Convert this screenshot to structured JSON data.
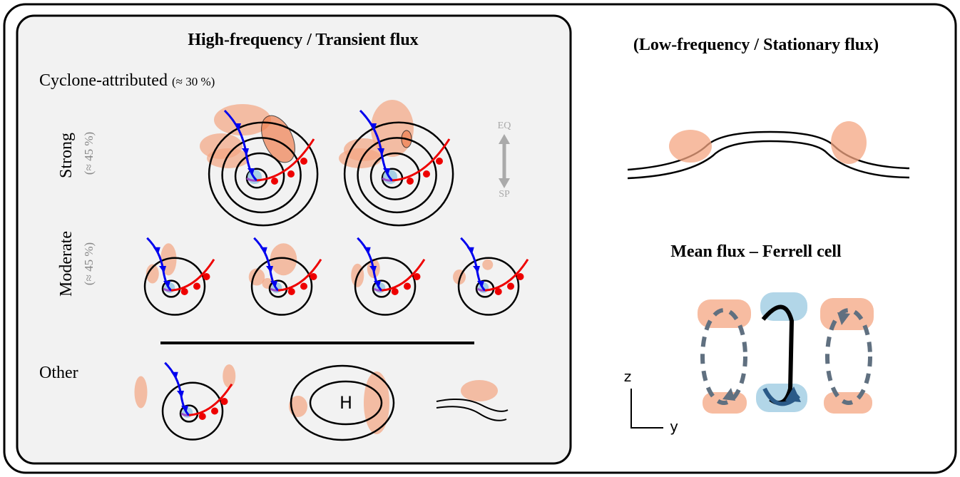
{
  "left_panel": {
    "title": "High-frequency / Transient flux",
    "subtitle": "Cyclone-attributed",
    "subtitle_share": "(≈ 30 %)",
    "rows": [
      {
        "label": "Strong",
        "share": "(≈ 45 %)"
      },
      {
        "label": "Moderate",
        "share": "(≈ 45 %)"
      },
      {
        "label": "Other"
      }
    ],
    "axis": {
      "top": "EQ",
      "bottom": "SP"
    },
    "high_label": "H"
  },
  "right_panel": {
    "title": "(Low-frequency / Stationary flux)",
    "mean_title": "Mean flux – Ferrell cell",
    "z_label": "z",
    "y_label": "y"
  }
}
